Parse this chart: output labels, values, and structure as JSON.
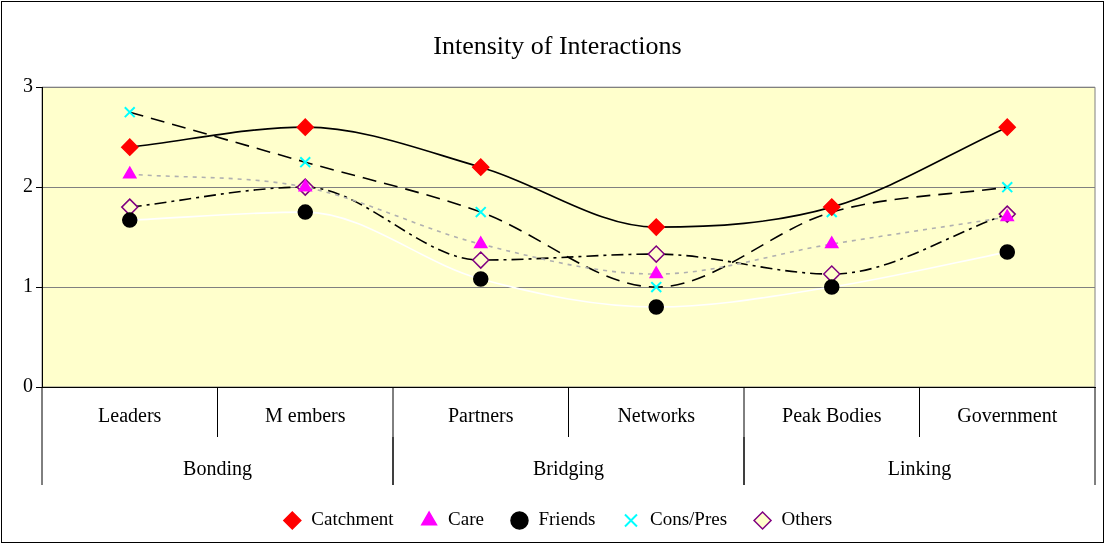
{
  "chart_data": {
    "type": "line",
    "title": "Intensity of Interactions",
    "categories": [
      "Leaders",
      "M embers",
      "Partners",
      "Networks",
      "Peak Bodies",
      "Government"
    ],
    "annotations": [
      "Bonding",
      "Bridging",
      "Linking"
    ],
    "series": [
      {
        "name": "Catchment",
        "color": "#ff0000",
        "marker": "diamond",
        "line_style": "solid",
        "values": [
          2.4,
          2.6,
          2.2,
          1.6,
          1.8,
          2.6
        ]
      },
      {
        "name": "Care",
        "color": "#ff00ff",
        "marker": "triangle",
        "line_style": "dashed",
        "values": [
          2.13,
          2.0,
          1.43,
          1.13,
          1.43,
          1.7
        ]
      },
      {
        "name": "Friends",
        "color": "#000000",
        "marker": "circle",
        "line_style": "solid",
        "values": [
          1.67,
          1.75,
          1.08,
          0.8,
          1.0,
          1.35
        ]
      },
      {
        "name": "Cons/Pres",
        "color": "#00ffff",
        "marker": "cross",
        "line_style": "dashed",
        "values": [
          2.75,
          2.25,
          1.75,
          1.0,
          1.75,
          2.0
        ]
      },
      {
        "name": "Others",
        "color": "#800080",
        "marker": "diamond",
        "line_style": "dashed",
        "values": [
          1.8,
          2.0,
          1.27,
          1.33,
          1.13,
          1.73
        ]
      }
    ],
    "ylim": [
      0,
      3
    ],
    "yticks": [
      0,
      1,
      2,
      3
    ],
    "grid": "y",
    "legend": "bottom"
  }
}
